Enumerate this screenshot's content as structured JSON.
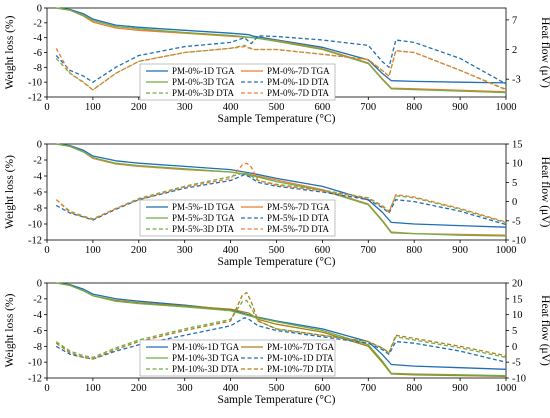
{
  "chart_data": [
    {
      "type": "line",
      "xlabel": "Sample Temperature (°C)",
      "ylabel": "Weight loss (%)",
      "y2label": "Heat flow (μV)",
      "xlim": [
        0,
        1000
      ],
      "ylim": [
        -12,
        0
      ],
      "y2lim": [
        -6,
        9
      ],
      "xticks": [
        0,
        100,
        200,
        300,
        400,
        500,
        600,
        700,
        800,
        900,
        1000
      ],
      "yticks": [
        0,
        -2,
        -4,
        -6,
        -8,
        -10,
        -12
      ],
      "y2ticks": [
        7,
        2,
        -3
      ],
      "grid": false,
      "legend_position": "center",
      "series": [
        {
          "name": "PM-0%-1D TGA",
          "axis": "left",
          "style": "solid",
          "color": "#1f6fb2",
          "x": [
            20,
            50,
            80,
            100,
            150,
            200,
            300,
            400,
            440,
            450,
            500,
            600,
            700,
            730,
            750,
            800,
            900,
            1000
          ],
          "y": [
            0,
            -0.2,
            -0.8,
            -1.5,
            -2.3,
            -2.6,
            -3.0,
            -3.4,
            -3.6,
            -3.8,
            -4.3,
            -5.3,
            -7.0,
            -8.8,
            -9.8,
            -9.9,
            -10.0,
            -10.1
          ]
        },
        {
          "name": "PM-0%-7D TGA",
          "axis": "left",
          "style": "solid",
          "color": "#ed7d31",
          "x": [
            20,
            50,
            80,
            100,
            150,
            200,
            300,
            400,
            450,
            500,
            600,
            700,
            730,
            750,
            800,
            900,
            1000
          ],
          "y": [
            0,
            -0.3,
            -1.1,
            -1.9,
            -2.7,
            -3.0,
            -3.4,
            -3.8,
            -4.0,
            -4.4,
            -5.5,
            -7.4,
            -9.5,
            -10.8,
            -10.9,
            -11.1,
            -11.3
          ]
        },
        {
          "name": "PM-0%-3D TGA",
          "axis": "left",
          "style": "solid",
          "color": "#70ad47",
          "x": [
            20,
            50,
            80,
            100,
            150,
            200,
            300,
            400,
            450,
            500,
            600,
            700,
            730,
            750,
            800,
            900,
            1000
          ],
          "y": [
            0,
            -0.3,
            -1.0,
            -1.7,
            -2.5,
            -2.8,
            -3.3,
            -3.7,
            -4.0,
            -4.5,
            -5.6,
            -7.5,
            -9.6,
            -10.9,
            -11.0,
            -11.2,
            -11.4
          ]
        },
        {
          "name": "PM-0%-1D DTA",
          "axis": "right",
          "style": "dashed",
          "color": "#1f6fb2",
          "x": [
            20,
            50,
            80,
            100,
            150,
            200,
            300,
            400,
            430,
            445,
            460,
            500,
            600,
            700,
            730,
            745,
            760,
            800,
            900,
            1000
          ],
          "y": [
            1.0,
            -1.5,
            -2.5,
            -3.5,
            -1.0,
            1.0,
            2.5,
            3.2,
            4.0,
            3.0,
            4.3,
            4.2,
            3.6,
            2.7,
            0.0,
            -1.0,
            3.6,
            3.2,
            0.5,
            -3.8
          ]
        },
        {
          "name": "PM-0%-3D DTA",
          "axis": "right",
          "style": "dashed",
          "color": "#70ad47",
          "x": [
            20,
            50,
            80,
            100,
            150,
            200,
            300,
            400,
            430,
            450,
            500,
            600,
            700,
            730,
            745,
            760,
            800,
            900,
            1000
          ],
          "y": [
            0.5,
            -2.0,
            -3.5,
            -4.8,
            -2.0,
            0.0,
            1.5,
            2.2,
            2.7,
            2.0,
            2.0,
            1.2,
            0.3,
            -1.5,
            -2.5,
            1.8,
            1.5,
            -1.5,
            -4.7
          ]
        },
        {
          "name": "PM-0%-7D DTA",
          "axis": "right",
          "style": "dashed",
          "color": "#ed7d31",
          "x": [
            20,
            50,
            80,
            100,
            150,
            200,
            300,
            400,
            430,
            450,
            500,
            600,
            700,
            730,
            745,
            760,
            800,
            900,
            1000
          ],
          "y": [
            2.2,
            -2.0,
            -3.6,
            -4.8,
            -2.0,
            0.0,
            1.5,
            2.2,
            2.5,
            2.0,
            2.0,
            1.2,
            0.3,
            -1.5,
            -2.5,
            1.8,
            1.5,
            -1.5,
            -4.8
          ]
        }
      ]
    },
    {
      "type": "line",
      "xlabel": "Sample Temperature (°C)",
      "ylabel": "Weight loss (%)",
      "y2label": "Heat flow (μV)",
      "xlim": [
        0,
        1000
      ],
      "ylim": [
        -12,
        0
      ],
      "y2lim": [
        -10,
        15
      ],
      "xticks": [
        0,
        100,
        200,
        300,
        400,
        500,
        600,
        700,
        800,
        900,
        1000
      ],
      "yticks": [
        0,
        -2,
        -4,
        -6,
        -8,
        -10,
        -12
      ],
      "y2ticks": [
        15,
        10,
        5,
        0,
        -5,
        -10
      ],
      "grid": false,
      "legend_position": "bottom-center",
      "series": [
        {
          "name": "PM-5%-1D TGA",
          "axis": "left",
          "style": "solid",
          "color": "#1f6fb2",
          "x": [
            20,
            50,
            80,
            100,
            150,
            200,
            300,
            400,
            450,
            500,
            600,
            700,
            730,
            750,
            800,
            900,
            1000
          ],
          "y": [
            0,
            -0.2,
            -0.8,
            -1.5,
            -2.1,
            -2.4,
            -2.8,
            -3.2,
            -3.7,
            -4.3,
            -5.3,
            -7.0,
            -8.5,
            -9.8,
            -10.0,
            -10.2,
            -10.4
          ]
        },
        {
          "name": "PM-5%-7D TGA",
          "axis": "left",
          "style": "solid",
          "color": "#ed7d31",
          "x": [
            20,
            50,
            80,
            100,
            150,
            200,
            300,
            400,
            450,
            500,
            600,
            700,
            730,
            750,
            800,
            900,
            1000
          ],
          "y": [
            0,
            -0.3,
            -1.0,
            -1.8,
            -2.5,
            -2.8,
            -3.2,
            -3.5,
            -3.9,
            -4.5,
            -5.7,
            -7.5,
            -9.5,
            -11.0,
            -11.2,
            -11.3,
            -11.4
          ]
        },
        {
          "name": "PM-5%-3D TGA",
          "axis": "left",
          "style": "solid",
          "color": "#70ad47",
          "x": [
            20,
            50,
            80,
            100,
            150,
            200,
            300,
            400,
            450,
            500,
            600,
            700,
            730,
            750,
            800,
            900,
            1000
          ],
          "y": [
            0,
            -0.3,
            -1.0,
            -1.7,
            -2.4,
            -2.7,
            -3.1,
            -3.5,
            -4.0,
            -4.7,
            -5.8,
            -7.6,
            -9.6,
            -11.1,
            -11.2,
            -11.4,
            -11.5
          ]
        },
        {
          "name": "PM-5%-1D DTA",
          "axis": "right",
          "style": "dashed",
          "color": "#1f6fb2",
          "x": [
            20,
            50,
            80,
            100,
            150,
            200,
            300,
            400,
            430,
            440,
            460,
            500,
            600,
            700,
            730,
            745,
            760,
            800,
            900,
            1000
          ],
          "y": [
            -1.0,
            -3.0,
            -4.0,
            -4.8,
            -2.0,
            0.5,
            3.5,
            5.5,
            7.0,
            6.5,
            5.0,
            4.0,
            2.5,
            0.5,
            -1.5,
            -3.0,
            0.5,
            0.0,
            -2.5,
            -6.0
          ]
        },
        {
          "name": "PM-5%-3D DTA",
          "axis": "right",
          "style": "dashed",
          "color": "#70ad47",
          "x": [
            20,
            50,
            80,
            100,
            150,
            200,
            300,
            400,
            430,
            440,
            460,
            500,
            600,
            700,
            730,
            745,
            760,
            800,
            900,
            1000
          ],
          "y": [
            0.5,
            -2.5,
            -3.8,
            -4.5,
            -1.8,
            0.8,
            4.0,
            6.5,
            7.5,
            7.0,
            5.5,
            4.5,
            3.0,
            1.0,
            -1.0,
            -2.5,
            1.5,
            1.0,
            -2.0,
            -5.5
          ]
        },
        {
          "name": "PM-5%-7D DTA",
          "axis": "right",
          "style": "dashed",
          "color": "#ed7d31",
          "x": [
            20,
            50,
            80,
            100,
            150,
            200,
            300,
            400,
            425,
            435,
            445,
            460,
            500,
            600,
            700,
            730,
            745,
            760,
            800,
            900,
            1000
          ],
          "y": [
            0.5,
            -2.8,
            -4.0,
            -4.7,
            -1.8,
            0.5,
            3.8,
            6.0,
            9.5,
            10.0,
            9.0,
            5.5,
            4.3,
            2.8,
            0.8,
            -1.2,
            -2.8,
            1.8,
            1.2,
            -1.8,
            -5.3
          ]
        }
      ]
    },
    {
      "type": "line",
      "xlabel": "Sample Temperature (°C)",
      "ylabel": "Weight loss (%)",
      "y2label": "Heat flow (μV)",
      "xlim": [
        0,
        1000
      ],
      "ylim": [
        -12,
        0
      ],
      "y2lim": [
        -10,
        20
      ],
      "xticks": [
        0,
        100,
        200,
        300,
        400,
        500,
        600,
        700,
        800,
        900,
        1000
      ],
      "yticks": [
        0,
        -2,
        -4,
        -6,
        -8,
        -10,
        -12
      ],
      "y2ticks": [
        20,
        15,
        10,
        5,
        0,
        -5,
        -10
      ],
      "grid": false,
      "legend_position": "bottom-center",
      "series": [
        {
          "name": "PM-10%-1D TGA",
          "axis": "left",
          "style": "solid",
          "color": "#1f6fb2",
          "x": [
            20,
            50,
            80,
            100,
            150,
            200,
            300,
            400,
            450,
            500,
            600,
            700,
            730,
            750,
            800,
            900,
            1000
          ],
          "y": [
            0,
            -0.2,
            -0.8,
            -1.4,
            -2.0,
            -2.3,
            -2.8,
            -3.4,
            -4.2,
            -4.8,
            -5.8,
            -7.4,
            -9.0,
            -10.3,
            -10.5,
            -10.7,
            -10.9
          ]
        },
        {
          "name": "PM-10%-7D TGA",
          "axis": "left",
          "style": "solid",
          "color": "#b07d16",
          "x": [
            20,
            50,
            80,
            100,
            150,
            200,
            300,
            400,
            440,
            460,
            500,
            600,
            700,
            730,
            750,
            800,
            900,
            1000
          ],
          "y": [
            0,
            -0.3,
            -1.0,
            -1.6,
            -2.2,
            -2.5,
            -2.9,
            -3.3,
            -3.8,
            -4.6,
            -5.2,
            -6.2,
            -8.0,
            -10.0,
            -11.5,
            -11.6,
            -11.7,
            -11.8
          ]
        },
        {
          "name": "PM-10%-3D TGA",
          "axis": "left",
          "style": "solid",
          "color": "#70ad47",
          "x": [
            20,
            50,
            80,
            100,
            150,
            200,
            300,
            400,
            450,
            500,
            600,
            700,
            730,
            750,
            800,
            900,
            1000
          ],
          "y": [
            0,
            -0.3,
            -1.0,
            -1.6,
            -2.3,
            -2.6,
            -3.0,
            -3.5,
            -4.3,
            -4.9,
            -6.0,
            -7.8,
            -9.8,
            -11.4,
            -11.5,
            -11.6,
            -11.7
          ]
        },
        {
          "name": "PM-10%-1D DTA",
          "axis": "right",
          "style": "dashed",
          "color": "#1f6fb2",
          "x": [
            20,
            50,
            80,
            100,
            150,
            200,
            300,
            400,
            430,
            440,
            460,
            500,
            600,
            700,
            730,
            745,
            760,
            800,
            900,
            1000
          ],
          "y": [
            0.0,
            -2.5,
            -3.5,
            -4.0,
            -1.5,
            0.5,
            3.5,
            6.5,
            9.0,
            8.5,
            6.5,
            5.0,
            3.0,
            1.0,
            -1.0,
            -2.5,
            1.5,
            1.0,
            -1.5,
            -5.0
          ]
        },
        {
          "name": "PM-10%-3D DTA",
          "axis": "right",
          "style": "dashed",
          "color": "#70ad47",
          "x": [
            20,
            50,
            80,
            100,
            150,
            200,
            300,
            400,
            425,
            435,
            445,
            460,
            500,
            600,
            700,
            730,
            745,
            760,
            800,
            900,
            1000
          ],
          "y": [
            1.5,
            -1.5,
            -3.0,
            -3.5,
            -0.5,
            2.0,
            5.5,
            8.5,
            14.0,
            14.5,
            12.0,
            8.0,
            5.5,
            3.5,
            1.5,
            -0.5,
            -2.0,
            3.0,
            2.0,
            -0.5,
            -3.5
          ]
        },
        {
          "name": "PM-10%-7D DTA",
          "axis": "right",
          "style": "dashed",
          "color": "#b07d16",
          "x": [
            20,
            50,
            80,
            100,
            150,
            200,
            300,
            400,
            425,
            435,
            445,
            460,
            500,
            600,
            700,
            730,
            745,
            760,
            800,
            900,
            1000
          ],
          "y": [
            1.0,
            -2.0,
            -3.5,
            -4.0,
            -1.0,
            1.5,
            5.0,
            8.0,
            16.0,
            17.0,
            14.0,
            8.0,
            5.5,
            3.5,
            1.5,
            -0.5,
            -2.0,
            3.5,
            2.5,
            0.0,
            -3.0
          ]
        }
      ]
    }
  ]
}
